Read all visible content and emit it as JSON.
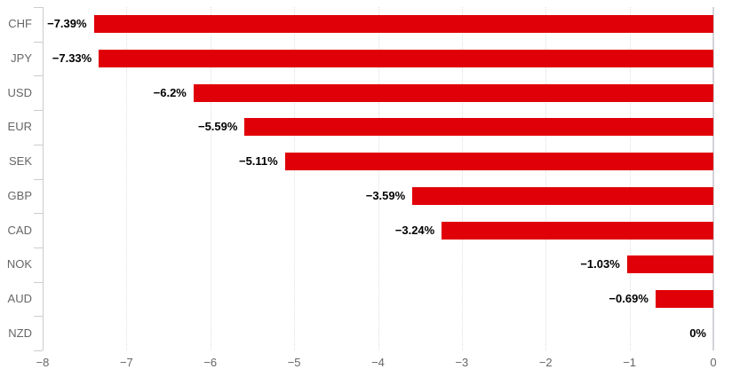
{
  "chart_data": {
    "type": "bar",
    "orientation": "horizontal",
    "title": "",
    "xlabel": "",
    "ylabel": "",
    "categories": [
      "CHF",
      "JPY",
      "USD",
      "EUR",
      "SEK",
      "GBP",
      "CAD",
      "NOK",
      "AUD",
      "NZD"
    ],
    "values": [
      -7.39,
      -7.33,
      -6.2,
      -5.59,
      -5.11,
      -3.59,
      -3.24,
      -1.03,
      -0.69,
      0
    ],
    "data_labels": [
      "−7.39%",
      "−7.33%",
      "−6.2%",
      "−5.59%",
      "−5.11%",
      "−3.59%",
      "−3.24%",
      "−1.03%",
      "−0.69%",
      "0%"
    ],
    "x_ticks": [
      -8,
      -7,
      -6,
      -5,
      -4,
      -3,
      -2,
      -1,
      0
    ],
    "x_tick_labels": [
      "−8",
      "−7",
      "−6",
      "−5",
      "−4",
      "−3",
      "−2",
      "−1",
      "0"
    ],
    "xlim": [
      -8,
      0
    ],
    "grid": true,
    "legend": false,
    "colors": {
      "bar": "#e00008",
      "gridline": "#dedede",
      "axis_line": "#cccccc",
      "zero_line": "#d3d3d8",
      "category_label": "#666666",
      "tick_label": "#666666",
      "data_label": "#000000",
      "background": "#ffffff"
    }
  }
}
